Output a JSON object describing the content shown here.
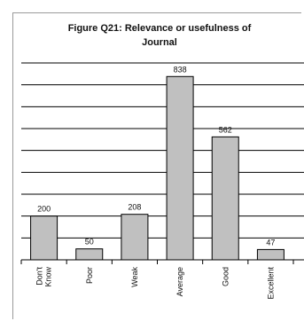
{
  "chart_data": {
    "type": "bar",
    "title": "Figure Q21: Relevance or usefulness of Journal",
    "categories": [
      "Don't Know",
      "Poor",
      "Weak",
      "Average",
      "Good",
      "Excellent"
    ],
    "category_lines": [
      [
        "Don't",
        "Know"
      ],
      [
        "Poor"
      ],
      [
        "Weak"
      ],
      [
        "Average"
      ],
      [
        "Good"
      ],
      [
        "Excellent"
      ]
    ],
    "values": [
      200,
      50,
      208,
      838,
      562,
      47
    ],
    "value_labels": [
      "200",
      "50",
      "208",
      "838",
      "562",
      "47"
    ],
    "ylim": [
      0,
      900
    ],
    "gridline_step": 100,
    "grid": true,
    "xlabel": "",
    "ylabel": "",
    "colors": {
      "bar_fill": "#c0c0c0",
      "bar_stroke": "#000000",
      "grid": "#000000"
    }
  }
}
